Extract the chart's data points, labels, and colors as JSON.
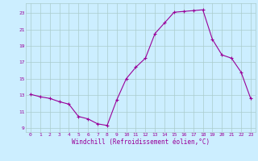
{
  "hours": [
    0,
    1,
    2,
    3,
    4,
    5,
    6,
    7,
    8,
    9,
    10,
    11,
    12,
    13,
    14,
    15,
    16,
    17,
    18,
    19,
    20,
    21,
    22,
    23
  ],
  "windchill": [
    13.1,
    12.8,
    12.6,
    12.2,
    11.9,
    10.4,
    10.1,
    9.5,
    9.3,
    12.4,
    15.0,
    16.4,
    17.5,
    20.5,
    21.8,
    23.1,
    23.2,
    23.3,
    23.4,
    19.8,
    17.9,
    17.5,
    15.8,
    12.6
  ],
  "line_color": "#990099",
  "marker": "+",
  "bg_color": "#cceeff",
  "grid_color": "#aacccc",
  "xlabel": "Windchill (Refroidissement éolien,°C)",
  "xlabel_color": "#990099",
  "tick_color": "#990099",
  "yticks": [
    9,
    11,
    13,
    15,
    17,
    19,
    21,
    23
  ],
  "xticks": [
    0,
    1,
    2,
    3,
    4,
    5,
    6,
    7,
    8,
    9,
    10,
    11,
    12,
    13,
    14,
    15,
    16,
    17,
    18,
    19,
    20,
    21,
    22,
    23
  ],
  "ylim": [
    8.5,
    24.2
  ],
  "xlim": [
    -0.5,
    23.5
  ]
}
